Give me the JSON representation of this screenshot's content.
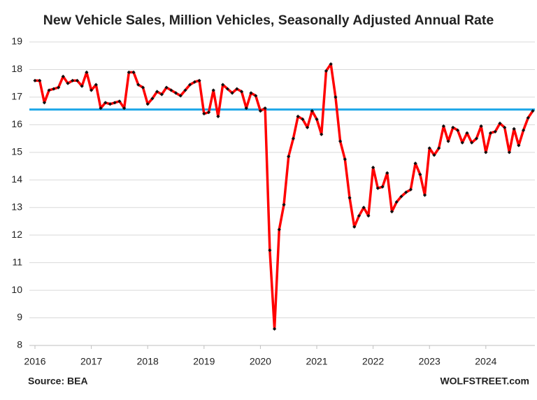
{
  "chart_data": {
    "type": "line",
    "title": "New Vehicle Sales, Million Vehicles, Seasonally Adjusted Annual Rate",
    "source": "Source: BEA",
    "brand": "WOLFSTREET.com",
    "categories": [
      "2016",
      null,
      null,
      null,
      null,
      null,
      null,
      null,
      null,
      null,
      null,
      null,
      "2017",
      null,
      null,
      null,
      null,
      null,
      null,
      null,
      null,
      null,
      null,
      null,
      "2018",
      null,
      null,
      null,
      null,
      null,
      null,
      null,
      null,
      null,
      null,
      null,
      "2019",
      null,
      null,
      null,
      null,
      null,
      null,
      null,
      null,
      null,
      null,
      null,
      "2020",
      null,
      null,
      null,
      null,
      null,
      null,
      null,
      null,
      null,
      null,
      null,
      "2021",
      null,
      null,
      null,
      null,
      null,
      null,
      null,
      null,
      null,
      null,
      null,
      "2022",
      null,
      null,
      null,
      null,
      null,
      null,
      null,
      null,
      null,
      null,
      null,
      "2023",
      null,
      null,
      null,
      null,
      null,
      null,
      null,
      null,
      null,
      null,
      null,
      "2024",
      null,
      null,
      null,
      null,
      null,
      null,
      null,
      null,
      null,
      null
    ],
    "series": [
      {
        "color": "#ff0000",
        "marker_color": "#111111",
        "values": [
          17.6,
          17.6,
          16.8,
          17.25,
          17.3,
          17.35,
          17.75,
          17.5,
          17.6,
          17.6,
          17.4,
          17.9,
          17.25,
          17.45,
          16.6,
          16.8,
          16.75,
          16.8,
          16.85,
          16.6,
          17.9,
          17.9,
          17.45,
          17.35,
          16.75,
          16.95,
          17.2,
          17.1,
          17.35,
          17.25,
          17.15,
          17.05,
          17.25,
          17.45,
          17.55,
          17.6,
          16.4,
          16.45,
          17.25,
          16.3,
          17.45,
          17.3,
          17.15,
          17.3,
          17.2,
          16.6,
          17.15,
          17.05,
          16.5,
          16.6,
          11.45,
          8.6,
          12.2,
          13.1,
          14.85,
          15.5,
          16.3,
          16.2,
          15.9,
          16.5,
          16.2,
          15.65,
          17.95,
          18.2,
          17.0,
          15.4,
          14.75,
          13.35,
          12.3,
          12.7,
          13.0,
          12.7,
          14.45,
          13.7,
          13.75,
          14.25,
          12.85,
          13.2,
          13.4,
          13.55,
          13.65,
          14.6,
          14.2,
          13.45,
          15.15,
          14.9,
          15.15,
          15.95,
          15.4,
          15.9,
          15.8,
          15.35,
          15.7,
          15.35,
          15.5,
          15.95,
          15.0,
          15.7,
          15.75,
          16.05,
          15.9,
          15.0,
          15.85,
          15.25,
          15.8,
          16.25,
          16.5
        ]
      }
    ],
    "reference_line": {
      "value": 16.55,
      "color": "#1ea7e8"
    },
    "ylim": [
      8,
      19
    ],
    "yticks": [
      8,
      9,
      10,
      11,
      12,
      13,
      14,
      15,
      16,
      17,
      18,
      19
    ],
    "grid": true
  }
}
